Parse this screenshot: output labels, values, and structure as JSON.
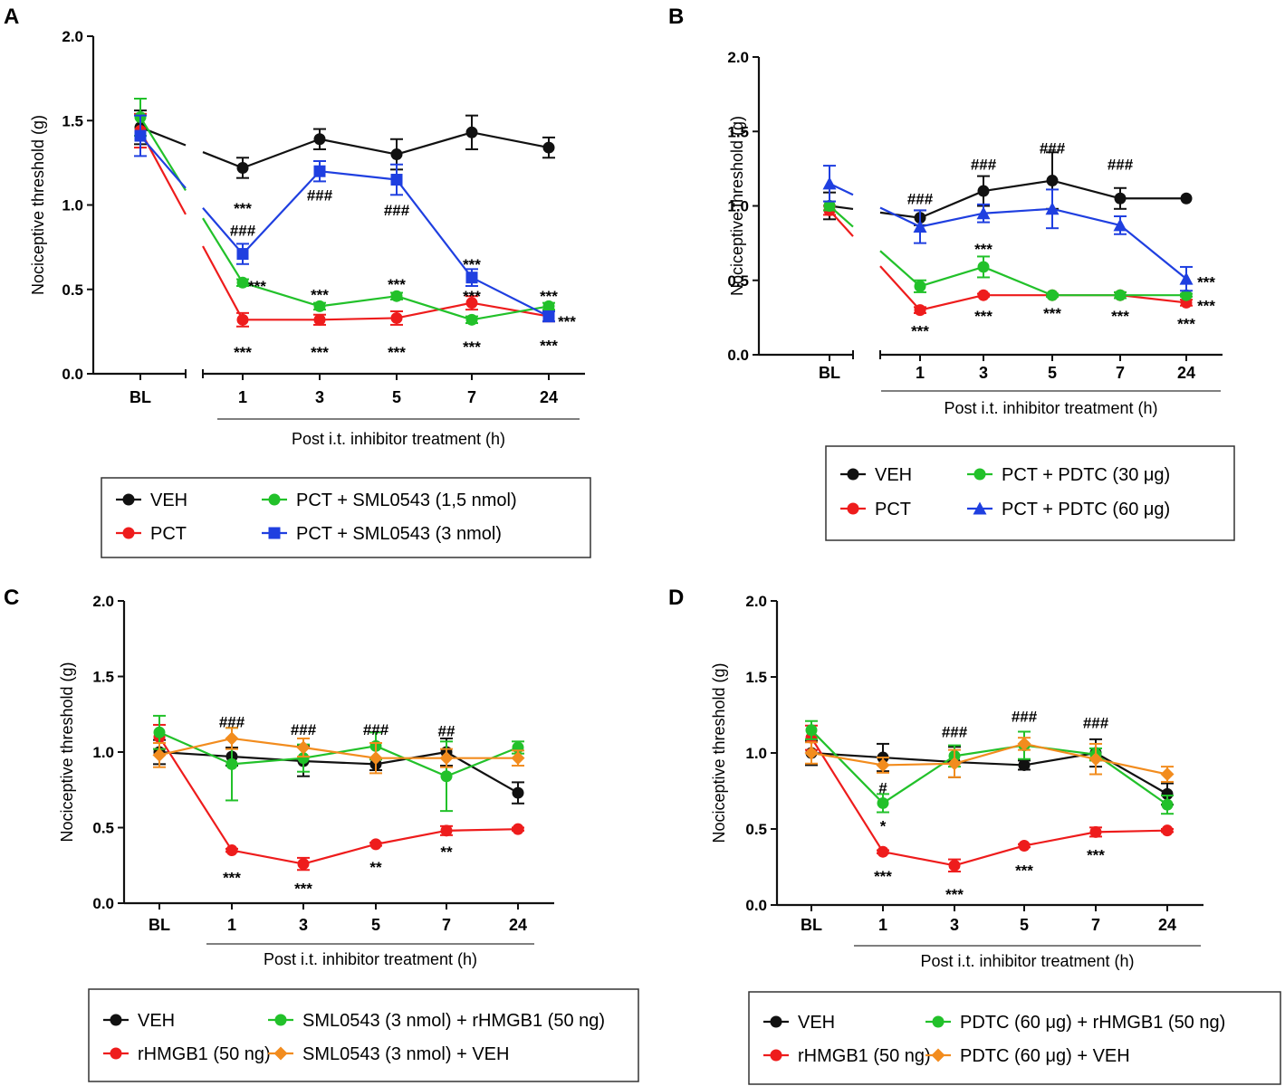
{
  "xlabel": "Post i.t. inhibitor treatment (h)",
  "ylabel": "Nociceptive threshold (g)",
  "x_ticks": [
    "BL",
    "1",
    "3",
    "5",
    "7",
    "24"
  ],
  "y_ticks": [
    "0.0",
    "0.5",
    "1.0",
    "1.5",
    "2.0"
  ],
  "colors": {
    "black": "#111111",
    "red": "#ee1c1c",
    "green": "#22c12a",
    "blue": "#1f3fe0",
    "orange": "#f28c1e"
  },
  "chart_data": [
    {
      "panel": "A",
      "type": "line",
      "ylim": [
        0,
        2
      ],
      "xlabel": "Post i.t. inhibitor treatment (h)",
      "ylabel": "Nociceptive threshold (g)",
      "categories": [
        "BL",
        "1",
        "3",
        "5",
        "7",
        "24"
      ],
      "series": [
        {
          "name": "VEH",
          "color": "black",
          "marker": "circle",
          "values": [
            1.46,
            1.22,
            1.39,
            1.3,
            1.43,
            1.34
          ],
          "err": [
            0.1,
            0.06,
            0.06,
            0.09,
            0.1,
            0.06
          ]
        },
        {
          "name": "PCT",
          "color": "red",
          "marker": "circle",
          "values": [
            1.44,
            0.32,
            0.32,
            0.33,
            0.42,
            0.34
          ],
          "err": [
            0.1,
            0.04,
            0.03,
            0.04,
            0.04,
            0.03
          ]
        },
        {
          "name": "PCT + SML0543 (1,5 nmol)",
          "color": "green",
          "marker": "circle",
          "values": [
            1.52,
            0.54,
            0.4,
            0.46,
            0.32,
            0.4
          ],
          "err": [
            0.11,
            0.02,
            0.02,
            0.02,
            0.02,
            0.02
          ]
        },
        {
          "name": "PCT + SML0543 (3 nmol)",
          "color": "blue",
          "marker": "square",
          "values": [
            1.41,
            0.71,
            1.2,
            1.15,
            0.57,
            0.34
          ],
          "err": [
            0.12,
            0.06,
            0.06,
            0.09,
            0.05,
            0.03
          ]
        }
      ],
      "annotations": [
        {
          "x": "1",
          "y": 0.98,
          "text": "***"
        },
        {
          "x": "1",
          "y": 0.85,
          "text": "###"
        },
        {
          "x": "1",
          "y": 0.52,
          "text": "***",
          "dx": 16
        },
        {
          "x": "1",
          "y": 0.13,
          "text": "***"
        },
        {
          "x": "3",
          "y": 1.06,
          "text": "###"
        },
        {
          "x": "3",
          "y": 0.47,
          "text": "***"
        },
        {
          "x": "3",
          "y": 0.13,
          "text": "***"
        },
        {
          "x": "5",
          "y": 0.97,
          "text": "###"
        },
        {
          "x": "5",
          "y": 0.53,
          "text": "***"
        },
        {
          "x": "5",
          "y": 0.13,
          "text": "***"
        },
        {
          "x": "7",
          "y": 0.65,
          "text": "***"
        },
        {
          "x": "7",
          "y": 0.46,
          "text": "***"
        },
        {
          "x": "7",
          "y": 0.16,
          "text": "***"
        },
        {
          "x": "24",
          "y": 0.46,
          "text": "***"
        },
        {
          "x": "24",
          "y": 0.31,
          "text": "***",
          "dx": 20
        },
        {
          "x": "24",
          "y": 0.17,
          "text": "***"
        }
      ],
      "legend": [
        "VEH",
        "PCT",
        "PCT + SML0543 (1,5 nmol)",
        "PCT + SML0543 (3 nmol)"
      ]
    },
    {
      "panel": "B",
      "type": "line",
      "ylim": [
        0,
        2
      ],
      "xlabel": "Post i.t. inhibitor treatment (h)",
      "ylabel": "Nociceptive threshold (g)",
      "categories": [
        "BL",
        "1",
        "3",
        "5",
        "7",
        "24"
      ],
      "series": [
        {
          "name": "VEH",
          "color": "black",
          "marker": "circle",
          "values": [
            1.0,
            0.92,
            1.1,
            1.17,
            1.05,
            1.05
          ],
          "err": [
            0.09,
            0.05,
            0.1,
            0.19,
            0.07,
            0.0
          ]
        },
        {
          "name": "PCT",
          "color": "red",
          "marker": "circle",
          "values": [
            0.97,
            0.3,
            0.4,
            0.4,
            0.4,
            0.35
          ],
          "err": [
            0.03,
            0.02,
            0.01,
            0.01,
            0.02,
            0.02
          ]
        },
        {
          "name": "PCT + PDTC (30 μg)",
          "color": "green",
          "marker": "circle",
          "values": [
            1.0,
            0.46,
            0.59,
            0.4,
            0.4,
            0.4
          ],
          "err": [
            0.03,
            0.04,
            0.07,
            0.01,
            0.02,
            0.01
          ]
        },
        {
          "name": "PCT + PDTC (60 μg)",
          "color": "blue",
          "marker": "triangle",
          "values": [
            1.15,
            0.86,
            0.95,
            0.98,
            0.87,
            0.51
          ],
          "err": [
            0.12,
            0.11,
            0.06,
            0.13,
            0.06,
            0.08
          ]
        }
      ],
      "annotations": [
        {
          "x": "1",
          "y": 1.05,
          "text": "###"
        },
        {
          "x": "1",
          "y": 0.16,
          "text": "***"
        },
        {
          "x": "3",
          "y": 1.28,
          "text": "###"
        },
        {
          "x": "3",
          "y": 0.71,
          "text": "***"
        },
        {
          "x": "3",
          "y": 0.26,
          "text": "***"
        },
        {
          "x": "5",
          "y": 1.39,
          "text": "###"
        },
        {
          "x": "5",
          "y": 0.28,
          "text": "***"
        },
        {
          "x": "7",
          "y": 1.28,
          "text": "###"
        },
        {
          "x": "7",
          "y": 0.26,
          "text": "***"
        },
        {
          "x": "24",
          "y": 0.49,
          "text": "***",
          "dx": 22
        },
        {
          "x": "24",
          "y": 0.33,
          "text": "***",
          "dx": 22
        },
        {
          "x": "24",
          "y": 0.21,
          "text": "***"
        }
      ],
      "legend": [
        "VEH",
        "PCT",
        "PCT + PDTC (30 μg)",
        "PCT + PDTC (60 μg)"
      ]
    },
    {
      "panel": "C",
      "type": "line",
      "ylim": [
        0,
        2
      ],
      "xlabel": "Post i.t. inhibitor treatment (h)",
      "ylabel": "Nociceptive threshold (g)",
      "categories": [
        "BL",
        "1",
        "3",
        "5",
        "7",
        "24"
      ],
      "series": [
        {
          "name": "VEH",
          "color": "black",
          "marker": "circle",
          "values": [
            1.0,
            0.97,
            0.94,
            0.92,
            1.0,
            0.73
          ],
          "err": [
            0.08,
            0.06,
            0.1,
            0.04,
            0.09,
            0.07
          ]
        },
        {
          "name": "rHMGB1 (50 ng)",
          "color": "red",
          "marker": "circle",
          "values": [
            1.1,
            0.35,
            0.26,
            0.39,
            0.48,
            0.49
          ],
          "err": [
            0.08,
            0.01,
            0.04,
            0.01,
            0.03,
            0.01
          ]
        },
        {
          "name": "SML0543 (3 nmol) + rHMGB1 (50 ng)",
          "color": "green",
          "marker": "circle",
          "values": [
            1.13,
            0.92,
            0.96,
            1.04,
            0.84,
            1.03
          ],
          "err": [
            0.11,
            0.24,
            0.09,
            0.09,
            0.23,
            0.04
          ]
        },
        {
          "name": "SML0543 (3 nmol) + VEH",
          "color": "orange",
          "marker": "diamond",
          "values": [
            0.98,
            1.09,
            1.03,
            0.96,
            0.96,
            0.96
          ],
          "err": [
            0.08,
            0.07,
            0.06,
            0.1,
            0.06,
            0.05
          ]
        }
      ],
      "annotations": [
        {
          "x": "1",
          "y": 1.2,
          "text": "###"
        },
        {
          "x": "1",
          "y": 0.17,
          "text": "***"
        },
        {
          "x": "3",
          "y": 1.15,
          "text": "###"
        },
        {
          "x": "3",
          "y": 0.1,
          "text": "***"
        },
        {
          "x": "5",
          "y": 1.15,
          "text": "###"
        },
        {
          "x": "5",
          "y": 0.24,
          "text": "**"
        },
        {
          "x": "7",
          "y": 1.14,
          "text": "##"
        },
        {
          "x": "7",
          "y": 0.34,
          "text": "**"
        }
      ],
      "legend": [
        "VEH",
        "rHMGB1 (50 ng)",
        "SML0543 (3 nmol) + rHMGB1 (50 ng)",
        "SML0543 (3 nmol) + VEH"
      ]
    },
    {
      "panel": "D",
      "type": "line",
      "ylim": [
        0,
        2
      ],
      "xlabel": "Post i.t. inhibitor treatment (h)",
      "ylabel": "Nociceptive threshold (g)",
      "categories": [
        "BL",
        "1",
        "3",
        "5",
        "7",
        "24"
      ],
      "series": [
        {
          "name": "VEH",
          "color": "black",
          "marker": "circle",
          "values": [
            1.0,
            0.97,
            0.94,
            0.92,
            1.0,
            0.73
          ],
          "err": [
            0.08,
            0.09,
            0.1,
            0.03,
            0.09,
            0.07
          ]
        },
        {
          "name": "rHMGB1 (50 ng)",
          "color": "red",
          "marker": "circle",
          "values": [
            1.1,
            0.35,
            0.26,
            0.39,
            0.48,
            0.49
          ],
          "err": [
            0.08,
            0.01,
            0.04,
            0.01,
            0.03,
            0.01
          ]
        },
        {
          "name": "PDTC (60 μg) + rHMGB1 (50 ng)",
          "color": "green",
          "marker": "circle",
          "values": [
            1.15,
            0.67,
            0.98,
            1.05,
            0.99,
            0.66
          ],
          "err": [
            0.06,
            0.06,
            0.07,
            0.09,
            0.04,
            0.06
          ]
        },
        {
          "name": "PDTC (60 μg) + VEH",
          "color": "orange",
          "marker": "diamond",
          "values": [
            1.0,
            0.92,
            0.93,
            1.06,
            0.96,
            0.86
          ],
          "err": [
            0.07,
            0.05,
            0.09,
            0.04,
            0.1,
            0.05
          ]
        }
      ],
      "annotations": [
        {
          "x": "1",
          "y": 0.77,
          "text": "#"
        },
        {
          "x": "1",
          "y": 0.52,
          "text": "*"
        },
        {
          "x": "1",
          "y": 0.19,
          "text": "***"
        },
        {
          "x": "3",
          "y": 1.14,
          "text": "###"
        },
        {
          "x": "3",
          "y": 0.07,
          "text": "***"
        },
        {
          "x": "5",
          "y": 1.24,
          "text": "###"
        },
        {
          "x": "5",
          "y": 0.23,
          "text": "***"
        },
        {
          "x": "7",
          "y": 1.2,
          "text": "###"
        },
        {
          "x": "7",
          "y": 0.33,
          "text": "***"
        }
      ],
      "legend": [
        "VEH",
        "rHMGB1 (50 ng)",
        "PDTC (60 μg) + rHMGB1 (50 ng)",
        "PDTC (60 μg) + VEH"
      ]
    }
  ]
}
